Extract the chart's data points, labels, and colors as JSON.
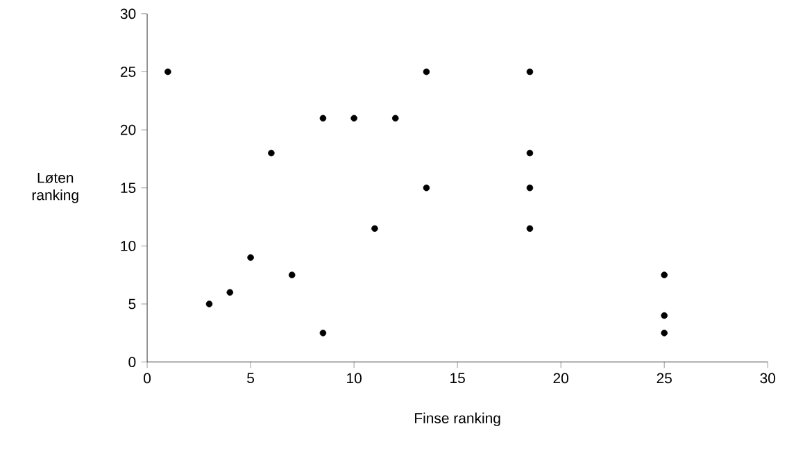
{
  "chart_data": {
    "type": "scatter",
    "xlabel": "Finse ranking",
    "ylabel": "Løten ranking",
    "x": [
      1,
      3,
      4,
      5,
      6,
      7,
      8.5,
      8.5,
      10,
      11,
      12,
      13.5,
      13.5,
      18.5,
      18.5,
      18.5,
      18.5,
      25,
      25,
      25
    ],
    "values": [
      25,
      5,
      6,
      9,
      18,
      7.5,
      2.5,
      21,
      21,
      11.5,
      21,
      25,
      15,
      25,
      18,
      15,
      11.5,
      7.5,
      4,
      2.5
    ],
    "color": "#000000",
    "marker": "circle",
    "xlim": [
      0,
      30
    ],
    "ylim": [
      0,
      30
    ],
    "xticks": [
      0,
      5,
      10,
      15,
      20,
      25,
      30
    ],
    "yticks": [
      0,
      5,
      10,
      15,
      20,
      25,
      30
    ]
  }
}
